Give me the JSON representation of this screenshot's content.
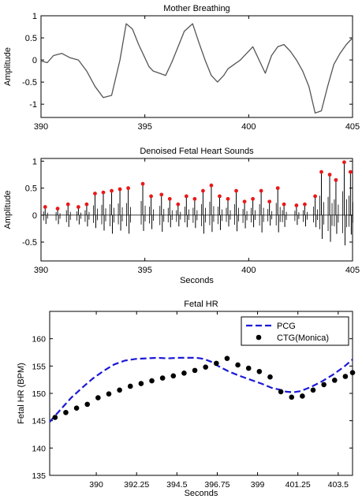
{
  "chart_data": [
    {
      "type": "line",
      "title": "Mother Breathing",
      "xlabel": "",
      "ylabel": "Amplitude",
      "xlim": [
        390,
        405
      ],
      "ylim": [
        -1.3,
        1.0
      ],
      "xticks": [
        390,
        395,
        400,
        405
      ],
      "yticks": [
        -1,
        -0.5,
        0,
        0.5,
        1
      ],
      "grid": false,
      "series": [
        {
          "color": "#555555",
          "x": [
            390,
            390.3,
            390.6,
            391,
            391.4,
            391.8,
            392.2,
            392.6,
            393,
            393.4,
            393.8,
            394.1,
            394.4,
            394.7,
            395,
            395.2,
            395.4,
            395.7,
            396,
            396.3,
            396.6,
            396.9,
            397.3,
            397.6,
            397.9,
            398.2,
            398.5,
            398.8,
            399,
            399.3,
            399.6,
            399.9,
            400.2,
            400.5,
            400.8,
            401.1,
            401.4,
            401.7,
            402,
            402.3,
            402.6,
            402.9,
            403.2,
            403.5,
            403.8,
            404.1,
            404.4,
            404.7,
            405
          ],
          "y": [
            -0.02,
            -0.06,
            0.1,
            0.15,
            0.05,
            0.0,
            -0.25,
            -0.6,
            -0.85,
            -0.8,
            0.0,
            0.82,
            0.7,
            0.35,
            0.05,
            -0.15,
            -0.25,
            -0.3,
            -0.35,
            -0.05,
            0.3,
            0.65,
            0.82,
            0.4,
            0.0,
            -0.35,
            -0.5,
            -0.35,
            -0.2,
            -0.1,
            0.0,
            0.15,
            0.3,
            0.0,
            -0.3,
            0.1,
            0.3,
            0.35,
            0.2,
            0.0,
            -0.25,
            -0.6,
            -1.2,
            -1.15,
            -0.6,
            -0.1,
            0.15,
            0.35,
            0.5
          ]
        }
      ]
    },
    {
      "type": "line",
      "title": "Denoised Fetal Heart Sounds",
      "xlabel": "Seconds",
      "ylabel": "Amplitude",
      "xlim": [
        390,
        405
      ],
      "ylim": [
        -0.85,
        1.05
      ],
      "xticks": [
        390,
        395,
        400,
        405
      ],
      "yticks": [
        -0.5,
        0,
        0.5,
        1
      ],
      "grid": false,
      "peak_color": "#e8191a",
      "peaks_x": [
        390.2,
        390.8,
        391.3,
        391.8,
        392.2,
        392.6,
        393.0,
        393.4,
        393.8,
        394.2,
        394.9,
        395.3,
        395.8,
        396.2,
        396.6,
        397.0,
        397.4,
        397.8,
        398.2,
        398.6,
        399.0,
        399.4,
        399.8,
        400.2,
        400.6,
        401.0,
        401.4,
        401.7,
        402.3,
        402.7,
        403.2,
        403.5,
        403.9,
        404.2,
        404.6,
        404.9
      ],
      "peaks_y": [
        0.15,
        0.12,
        0.2,
        0.15,
        0.2,
        0.4,
        0.42,
        0.45,
        0.48,
        0.5,
        0.58,
        0.35,
        0.38,
        0.3,
        0.2,
        0.35,
        0.3,
        0.45,
        0.55,
        0.35,
        0.3,
        0.45,
        0.25,
        0.3,
        0.45,
        0.25,
        0.5,
        0.2,
        0.18,
        0.2,
        0.35,
        0.8,
        0.75,
        0.65,
        0.98,
        0.8
      ]
    },
    {
      "type": "line",
      "title": "Fetal HR",
      "xlabel": "Seconds",
      "ylabel": "Fetal HR (BPM)",
      "xlim": [
        387.4,
        404.3
      ],
      "ylim": [
        135,
        165
      ],
      "xticks": [
        "390",
        "392.25",
        "394.5",
        "396.75",
        "399",
        "401.25",
        "403.5"
      ],
      "xtick_values": [
        390,
        392.25,
        394.5,
        396.75,
        399,
        401.25,
        403.5
      ],
      "yticks": [
        135,
        140,
        145,
        150,
        155,
        160
      ],
      "grid": false,
      "legend": "top-right",
      "series": [
        {
          "name": "PCG",
          "style": "dashed",
          "color": "#1a1ad6",
          "x": [
            387.4,
            388.0,
            388.6,
            389.2,
            389.8,
            390.4,
            391.0,
            391.6,
            392.2,
            392.8,
            393.4,
            394.0,
            394.6,
            395.2,
            395.6,
            396.0,
            396.4,
            396.8,
            397.4,
            398.0,
            398.6,
            399.2,
            399.8,
            400.2,
            400.6,
            401.0,
            401.4,
            402.0,
            402.6,
            403.2,
            403.8,
            404.3
          ],
          "y": [
            144.8,
            147.0,
            149.2,
            151.0,
            152.7,
            154.1,
            155.3,
            156.0,
            156.3,
            156.4,
            156.5,
            156.4,
            156.5,
            156.5,
            156.5,
            156.3,
            155.8,
            155.0,
            154.0,
            153.2,
            152.5,
            151.8,
            151.0,
            150.7,
            150.3,
            150.2,
            150.4,
            151.2,
            152.2,
            153.4,
            154.8,
            156.2
          ]
        },
        {
          "name": "CTG(Monica)",
          "style": "markers",
          "color": "#000000",
          "x": [
            387.7,
            388.3,
            388.9,
            389.5,
            390.1,
            390.7,
            391.3,
            391.9,
            392.5,
            393.1,
            393.7,
            394.3,
            394.9,
            395.5,
            396.1,
            396.7,
            397.3,
            397.9,
            398.5,
            399.1,
            399.7,
            400.3,
            400.9,
            401.5,
            402.1,
            402.7,
            403.3,
            403.9,
            404.3
          ],
          "y": [
            145.6,
            146.5,
            147.3,
            148.0,
            149.2,
            149.9,
            150.6,
            151.3,
            151.8,
            152.3,
            152.8,
            153.2,
            153.7,
            154.2,
            154.8,
            155.5,
            156.4,
            155.2,
            154.6,
            154.0,
            153.0,
            150.3,
            149.3,
            149.5,
            150.6,
            151.6,
            152.4,
            153.1,
            153.8
          ]
        }
      ]
    }
  ]
}
